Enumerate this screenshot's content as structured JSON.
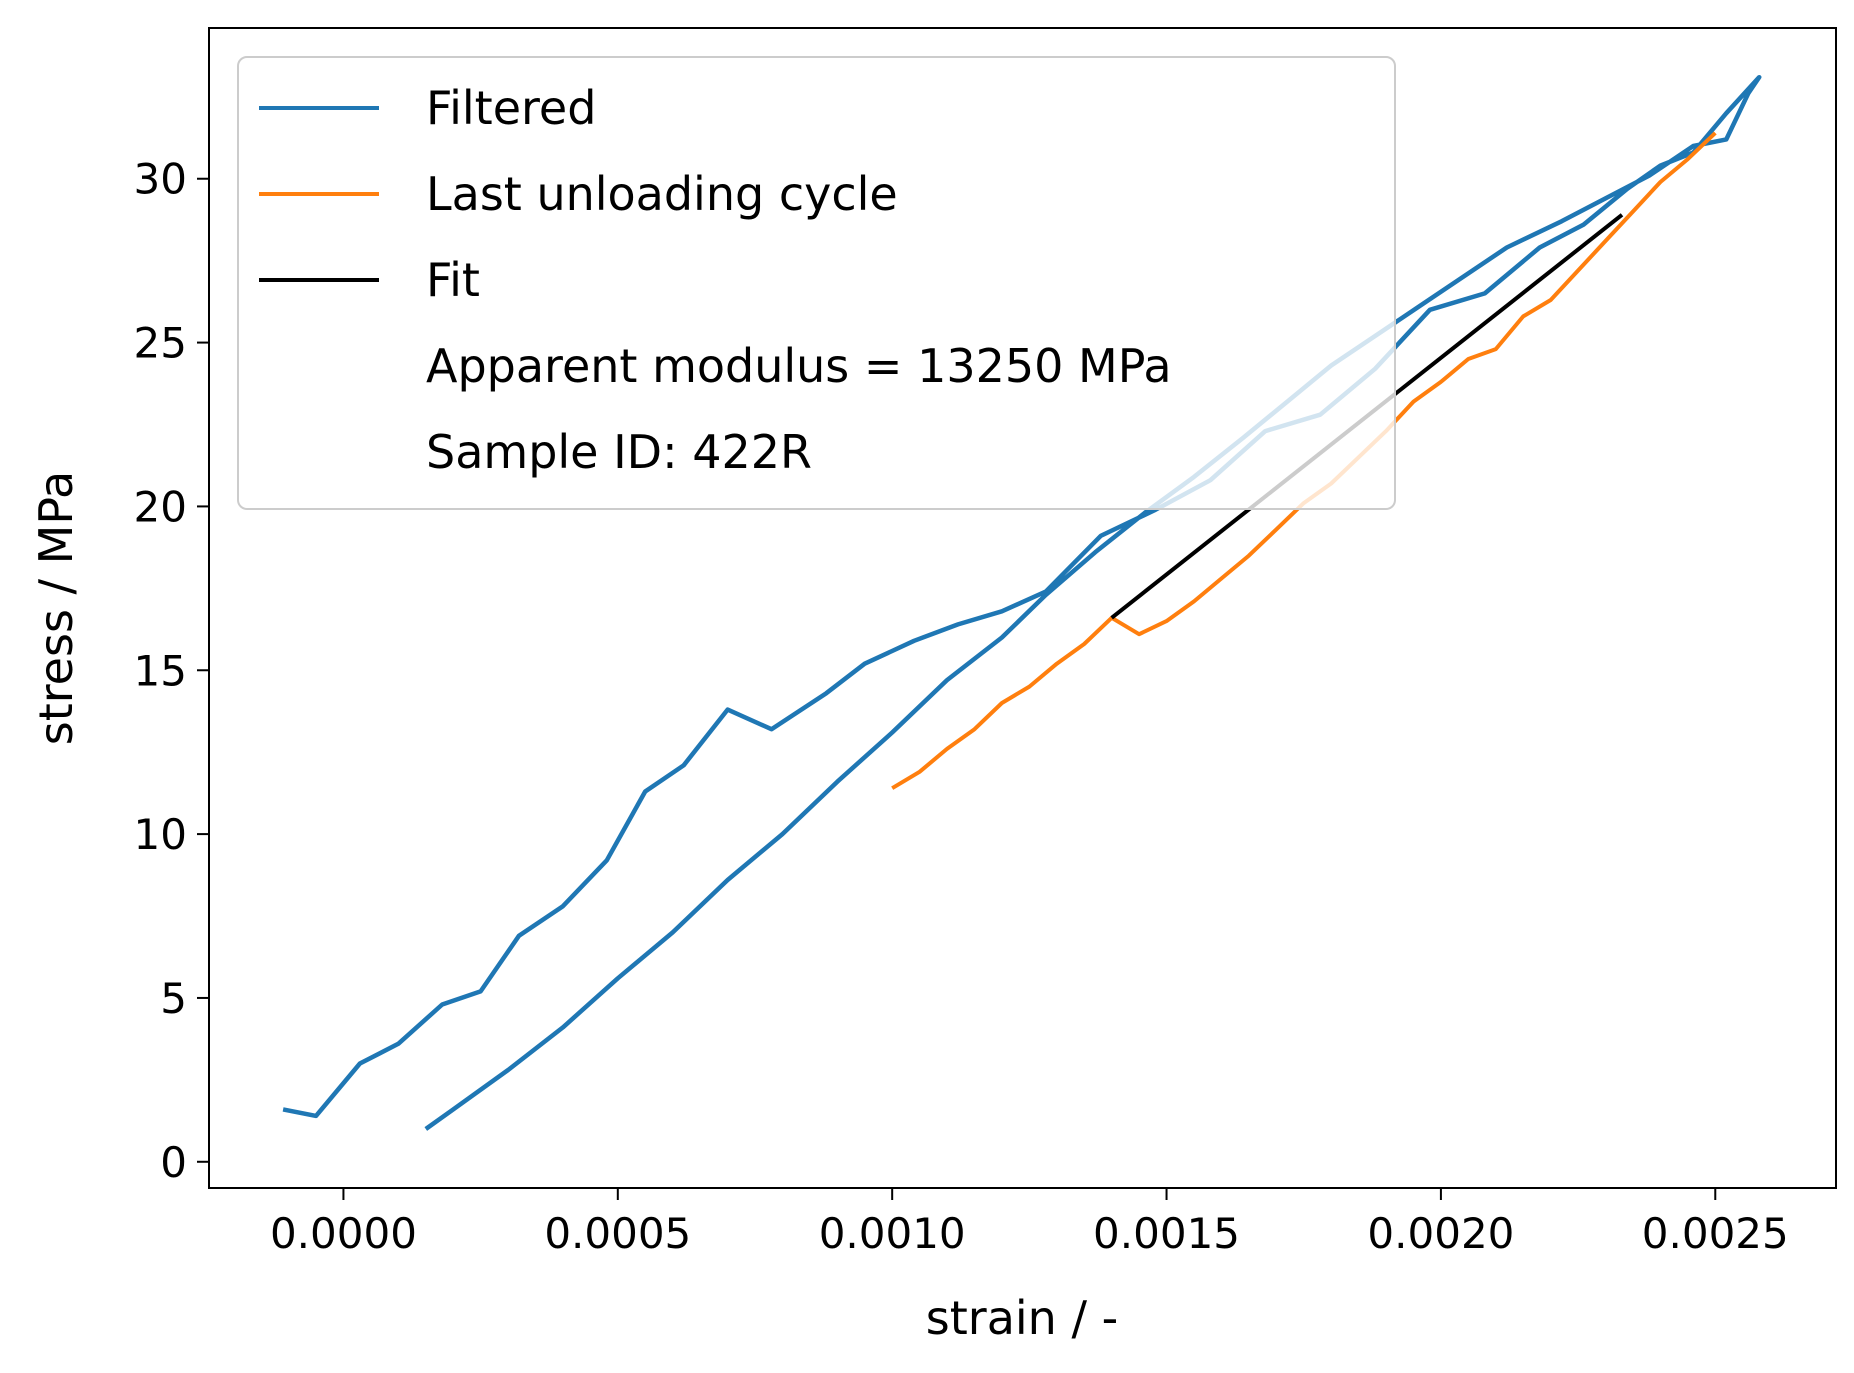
{
  "chart_data": {
    "type": "line",
    "xlabel": "strain / -",
    "ylabel": "stress / MPa",
    "xlim": [
      -0.000245,
      0.00272
    ],
    "ylim": [
      -0.8,
      34.6
    ],
    "xticks": [
      0.0,
      0.0005,
      0.001,
      0.0015,
      0.002,
      0.0025
    ],
    "xtick_labels": [
      "0.0000",
      "0.0005",
      "0.0010",
      "0.0015",
      "0.0020",
      "0.0025"
    ],
    "yticks": [
      0,
      5,
      10,
      15,
      20,
      25,
      30
    ],
    "ytick_labels": [
      "0",
      "5",
      "10",
      "15",
      "20",
      "25",
      "30"
    ],
    "grid": false,
    "legend_position": "upper-left",
    "legend": [
      {
        "label": "Filtered",
        "color": "#1f77b4"
      },
      {
        "label": "Last unloading cycle",
        "color": "#ff7f0e"
      },
      {
        "label": "Fit",
        "color": "#000000"
      },
      {
        "label": "Apparent modulus = 13250 MPa",
        "color": null
      },
      {
        "label": "Sample ID: 422R",
        "color": null
      }
    ],
    "series": [
      {
        "name": "Filtered",
        "color": "#1f77b4",
        "x": [
          -0.00011,
          -5e-05,
          3e-05,
          0.0001,
          0.00018,
          0.00025,
          0.00032,
          0.0004,
          0.00048,
          0.00055,
          0.00062,
          0.0007,
          0.00078,
          0.00088,
          0.00095,
          0.00104,
          0.00112,
          0.0012,
          0.00128,
          0.00138,
          0.00148,
          0.00158,
          0.00168,
          0.00178,
          0.00188,
          0.00198,
          0.00208,
          0.00218,
          0.00226,
          0.00234,
          0.0024,
          0.00246,
          0.00252,
          0.00258,
          0.00256,
          0.00252,
          0.00246,
          0.00238,
          0.0023,
          0.00222,
          0.00212,
          0.00204,
          0.00196,
          0.00188,
          0.0018,
          0.00172,
          0.00164,
          0.00155,
          0.00146,
          0.00137,
          0.00128,
          0.0012,
          0.0011,
          0.001,
          0.0009,
          0.0008,
          0.0007,
          0.0006,
          0.0005,
          0.0004,
          0.0003,
          0.0002,
          0.00015
        ],
        "y": [
          1.6,
          1.4,
          3.0,
          3.6,
          4.8,
          5.2,
          6.9,
          7.8,
          9.2,
          11.3,
          12.1,
          13.8,
          13.2,
          14.3,
          15.2,
          15.9,
          16.4,
          16.8,
          17.4,
          19.1,
          19.9,
          20.8,
          22.3,
          22.8,
          24.2,
          26.0,
          26.5,
          27.9,
          28.6,
          29.7,
          30.4,
          30.8,
          32.0,
          33.1,
          32.6,
          31.2,
          31.0,
          30.1,
          29.4,
          28.7,
          27.9,
          27.0,
          26.1,
          25.2,
          24.3,
          23.2,
          22.1,
          20.9,
          19.8,
          18.6,
          17.3,
          16.0,
          14.7,
          13.1,
          11.6,
          10.0,
          8.6,
          7.0,
          5.6,
          4.1,
          2.8,
          1.6,
          1.0
        ]
      },
      {
        "name": "Last unloading cycle",
        "color": "#ff7f0e",
        "x": [
          0.0025,
          0.00245,
          0.0024,
          0.00235,
          0.0023,
          0.00225,
          0.0022,
          0.00215,
          0.0021,
          0.00205,
          0.002,
          0.00195,
          0.0019,
          0.00185,
          0.0018,
          0.00175,
          0.0017,
          0.00165,
          0.0016,
          0.00155,
          0.0015,
          0.00145,
          0.0014,
          0.00135,
          0.0013,
          0.00125,
          0.0012,
          0.00115,
          0.0011,
          0.00105,
          0.001
        ],
        "y": [
          31.4,
          30.6,
          29.9,
          29.0,
          28.1,
          27.2,
          26.3,
          25.8,
          24.8,
          24.5,
          23.8,
          23.2,
          22.3,
          21.5,
          20.7,
          20.1,
          19.3,
          18.5,
          17.8,
          17.1,
          16.5,
          16.1,
          16.6,
          15.8,
          15.2,
          14.5,
          14.0,
          13.2,
          12.6,
          11.9,
          11.4
        ]
      },
      {
        "name": "Fit",
        "color": "#000000",
        "x": [
          0.0014,
          0.00233
        ],
        "y": [
          16.6,
          28.9
        ]
      }
    ]
  }
}
